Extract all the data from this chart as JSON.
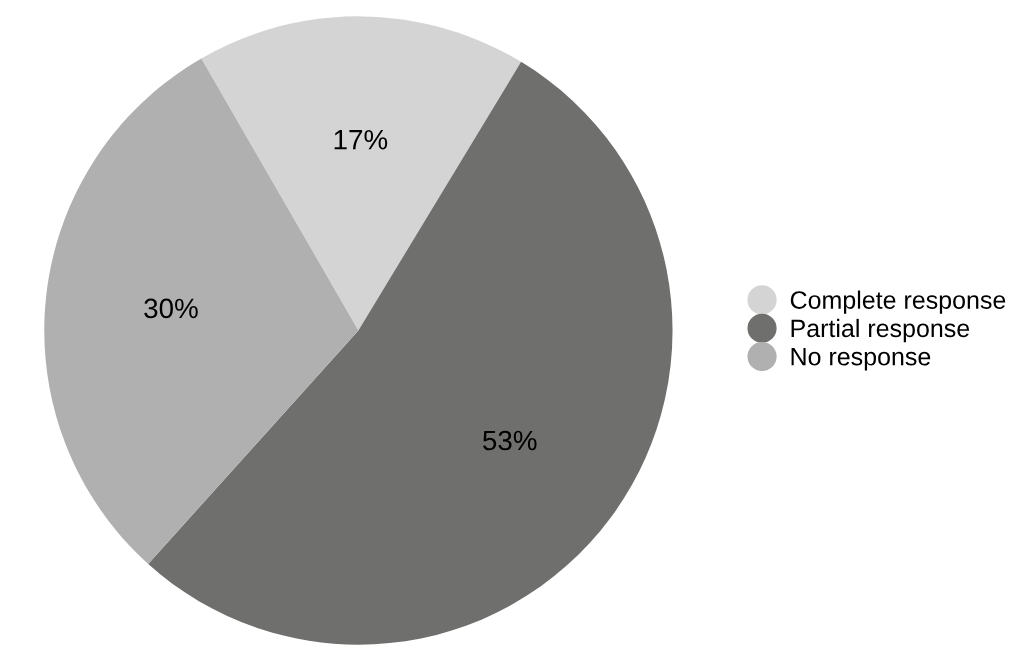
{
  "chart_data": {
    "type": "pie",
    "categories": [
      "Complete response",
      "Partial response",
      "No response"
    ],
    "values": [
      17,
      53,
      30
    ],
    "colors": [
      "#d4d4d4",
      "#6f6f6d",
      "#b0b0b0"
    ],
    "value_labels": [
      "17%",
      "53%",
      "30%"
    ],
    "legend": "right"
  }
}
